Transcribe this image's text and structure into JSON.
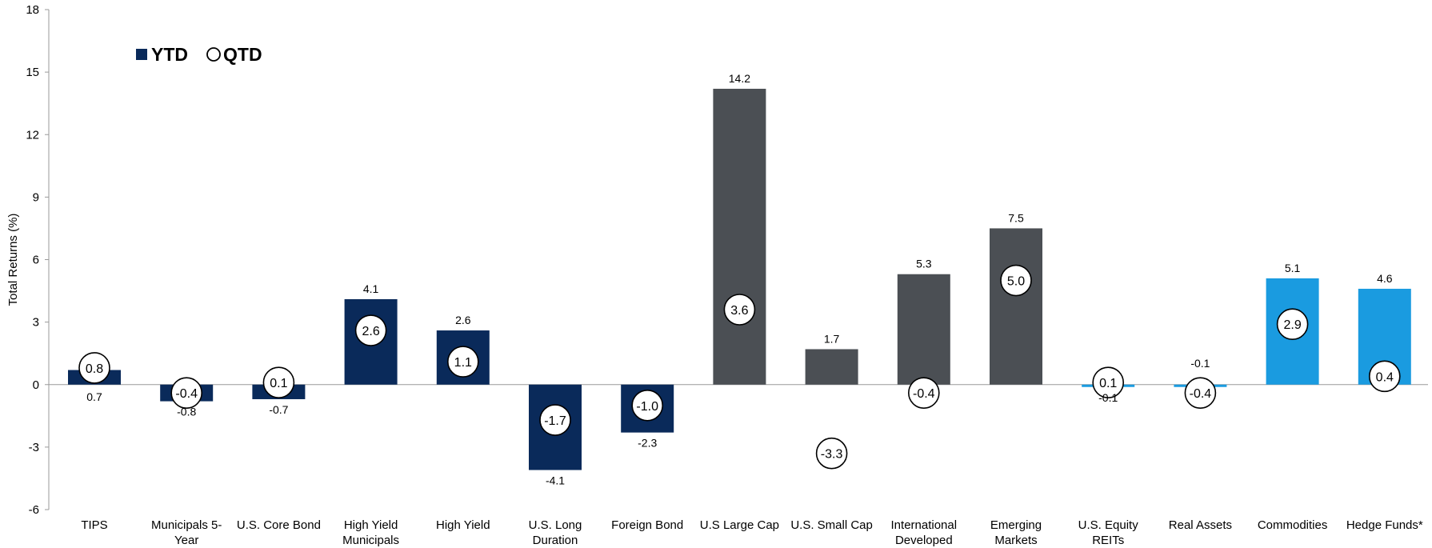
{
  "chart_data": {
    "type": "bar",
    "ylabel": "Total Returns (%)",
    "ylim": [
      -6,
      18
    ],
    "yticks": [
      -6,
      -3,
      0,
      3,
      6,
      9,
      12,
      15,
      18
    ],
    "legend": {
      "position": "top-left",
      "items": [
        {
          "label": "YTD",
          "marker": "square"
        },
        {
          "label": "QTD",
          "marker": "circle"
        }
      ]
    },
    "categories": [
      [
        "TIPS"
      ],
      [
        "Municipals 5-",
        "Year"
      ],
      [
        "U.S. Core Bond"
      ],
      [
        "High Yield",
        "Municipals"
      ],
      [
        "High Yield"
      ],
      [
        "U.S. Long",
        "Duration"
      ],
      [
        "Foreign Bond"
      ],
      [
        "U.S Large Cap"
      ],
      [
        "U.S. Small Cap"
      ],
      [
        "International",
        "Developed"
      ],
      [
        "Emerging",
        "Markets"
      ],
      [
        "U.S. Equity",
        "REITs"
      ],
      [
        "Real Assets"
      ],
      [
        "Commodities"
      ],
      [
        "Hedge Funds*"
      ]
    ],
    "series": [
      {
        "name": "YTD",
        "values": [
          0.7,
          -0.8,
          -0.7,
          4.1,
          2.6,
          -4.1,
          -2.3,
          14.2,
          1.7,
          5.3,
          7.5,
          -0.1,
          -0.1,
          5.1,
          4.6
        ]
      },
      {
        "name": "QTD",
        "values": [
          0.8,
          -0.4,
          0.1,
          2.6,
          1.1,
          -1.7,
          -1.0,
          3.6,
          -3.3,
          -0.4,
          5.0,
          0.1,
          -0.4,
          2.9,
          0.4
        ]
      }
    ],
    "ytd_labels": [
      "0.7",
      "-0.8",
      "-0.7",
      "4.1",
      "2.6",
      "-4.1",
      "-2.3",
      "14.2",
      "1.7",
      "5.3",
      "7.5",
      "-0.1",
      "-0.1",
      "5.1",
      "4.6"
    ],
    "qtd_labels": [
      "0.8",
      "-0.4",
      "0.1",
      "2.6",
      "1.1",
      "-1.7",
      "-1.0",
      "3.6",
      "-3.3",
      "-0.4",
      "5.0",
      "0.1",
      "-0.4",
      "2.9",
      "0.4"
    ],
    "bar_colors": [
      "#0a2a5a",
      "#0a2a5a",
      "#0a2a5a",
      "#0a2a5a",
      "#0a2a5a",
      "#0a2a5a",
      "#0a2a5a",
      "#4b4f54",
      "#4b4f54",
      "#4b4f54",
      "#4b4f54",
      "#1a9be0",
      "#1a9be0",
      "#1a9be0",
      "#1a9be0"
    ],
    "legend_color": "#0a2a5a"
  }
}
